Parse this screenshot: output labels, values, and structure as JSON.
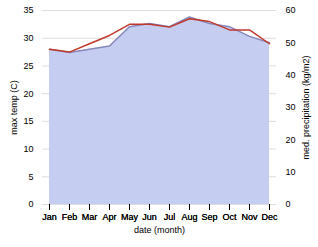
{
  "chart_data": {
    "type": "line",
    "categories": [
      "Jan",
      "Feb",
      "Mar",
      "Apr",
      "May",
      "Jun",
      "Jul",
      "Aug",
      "Sep",
      "Oct",
      "Nov",
      "Dec"
    ],
    "xlabel": "date (month)",
    "ylabel": "max temp (C)",
    "y2label": "med. precipitation (kg/m2)",
    "ylim": [
      0,
      35
    ],
    "yticks": [
      0,
      5,
      10,
      15,
      20,
      25,
      30,
      35
    ],
    "y2lim": [
      0,
      60
    ],
    "y2ticks": [
      0,
      10,
      20,
      30,
      40,
      50,
      60
    ],
    "grid": true,
    "series": [
      {
        "type": "area",
        "axis": "y2",
        "color": "#c5cef0",
        "values": [
          48,
          47,
          48,
          49,
          55,
          56,
          55,
          58,
          56,
          55,
          52,
          50
        ]
      },
      {
        "type": "line",
        "axis": "y2",
        "color": "#8888bb",
        "values": [
          48,
          47,
          48,
          49,
          55,
          56,
          55,
          58,
          56,
          55,
          52,
          50
        ]
      },
      {
        "type": "line",
        "color": "#c0392b",
        "values": [
          28.0,
          27.5,
          29.0,
          30.5,
          32.5,
          32.5,
          32.0,
          33.5,
          33.0,
          31.5,
          31.5,
          29.0
        ]
      }
    ]
  }
}
